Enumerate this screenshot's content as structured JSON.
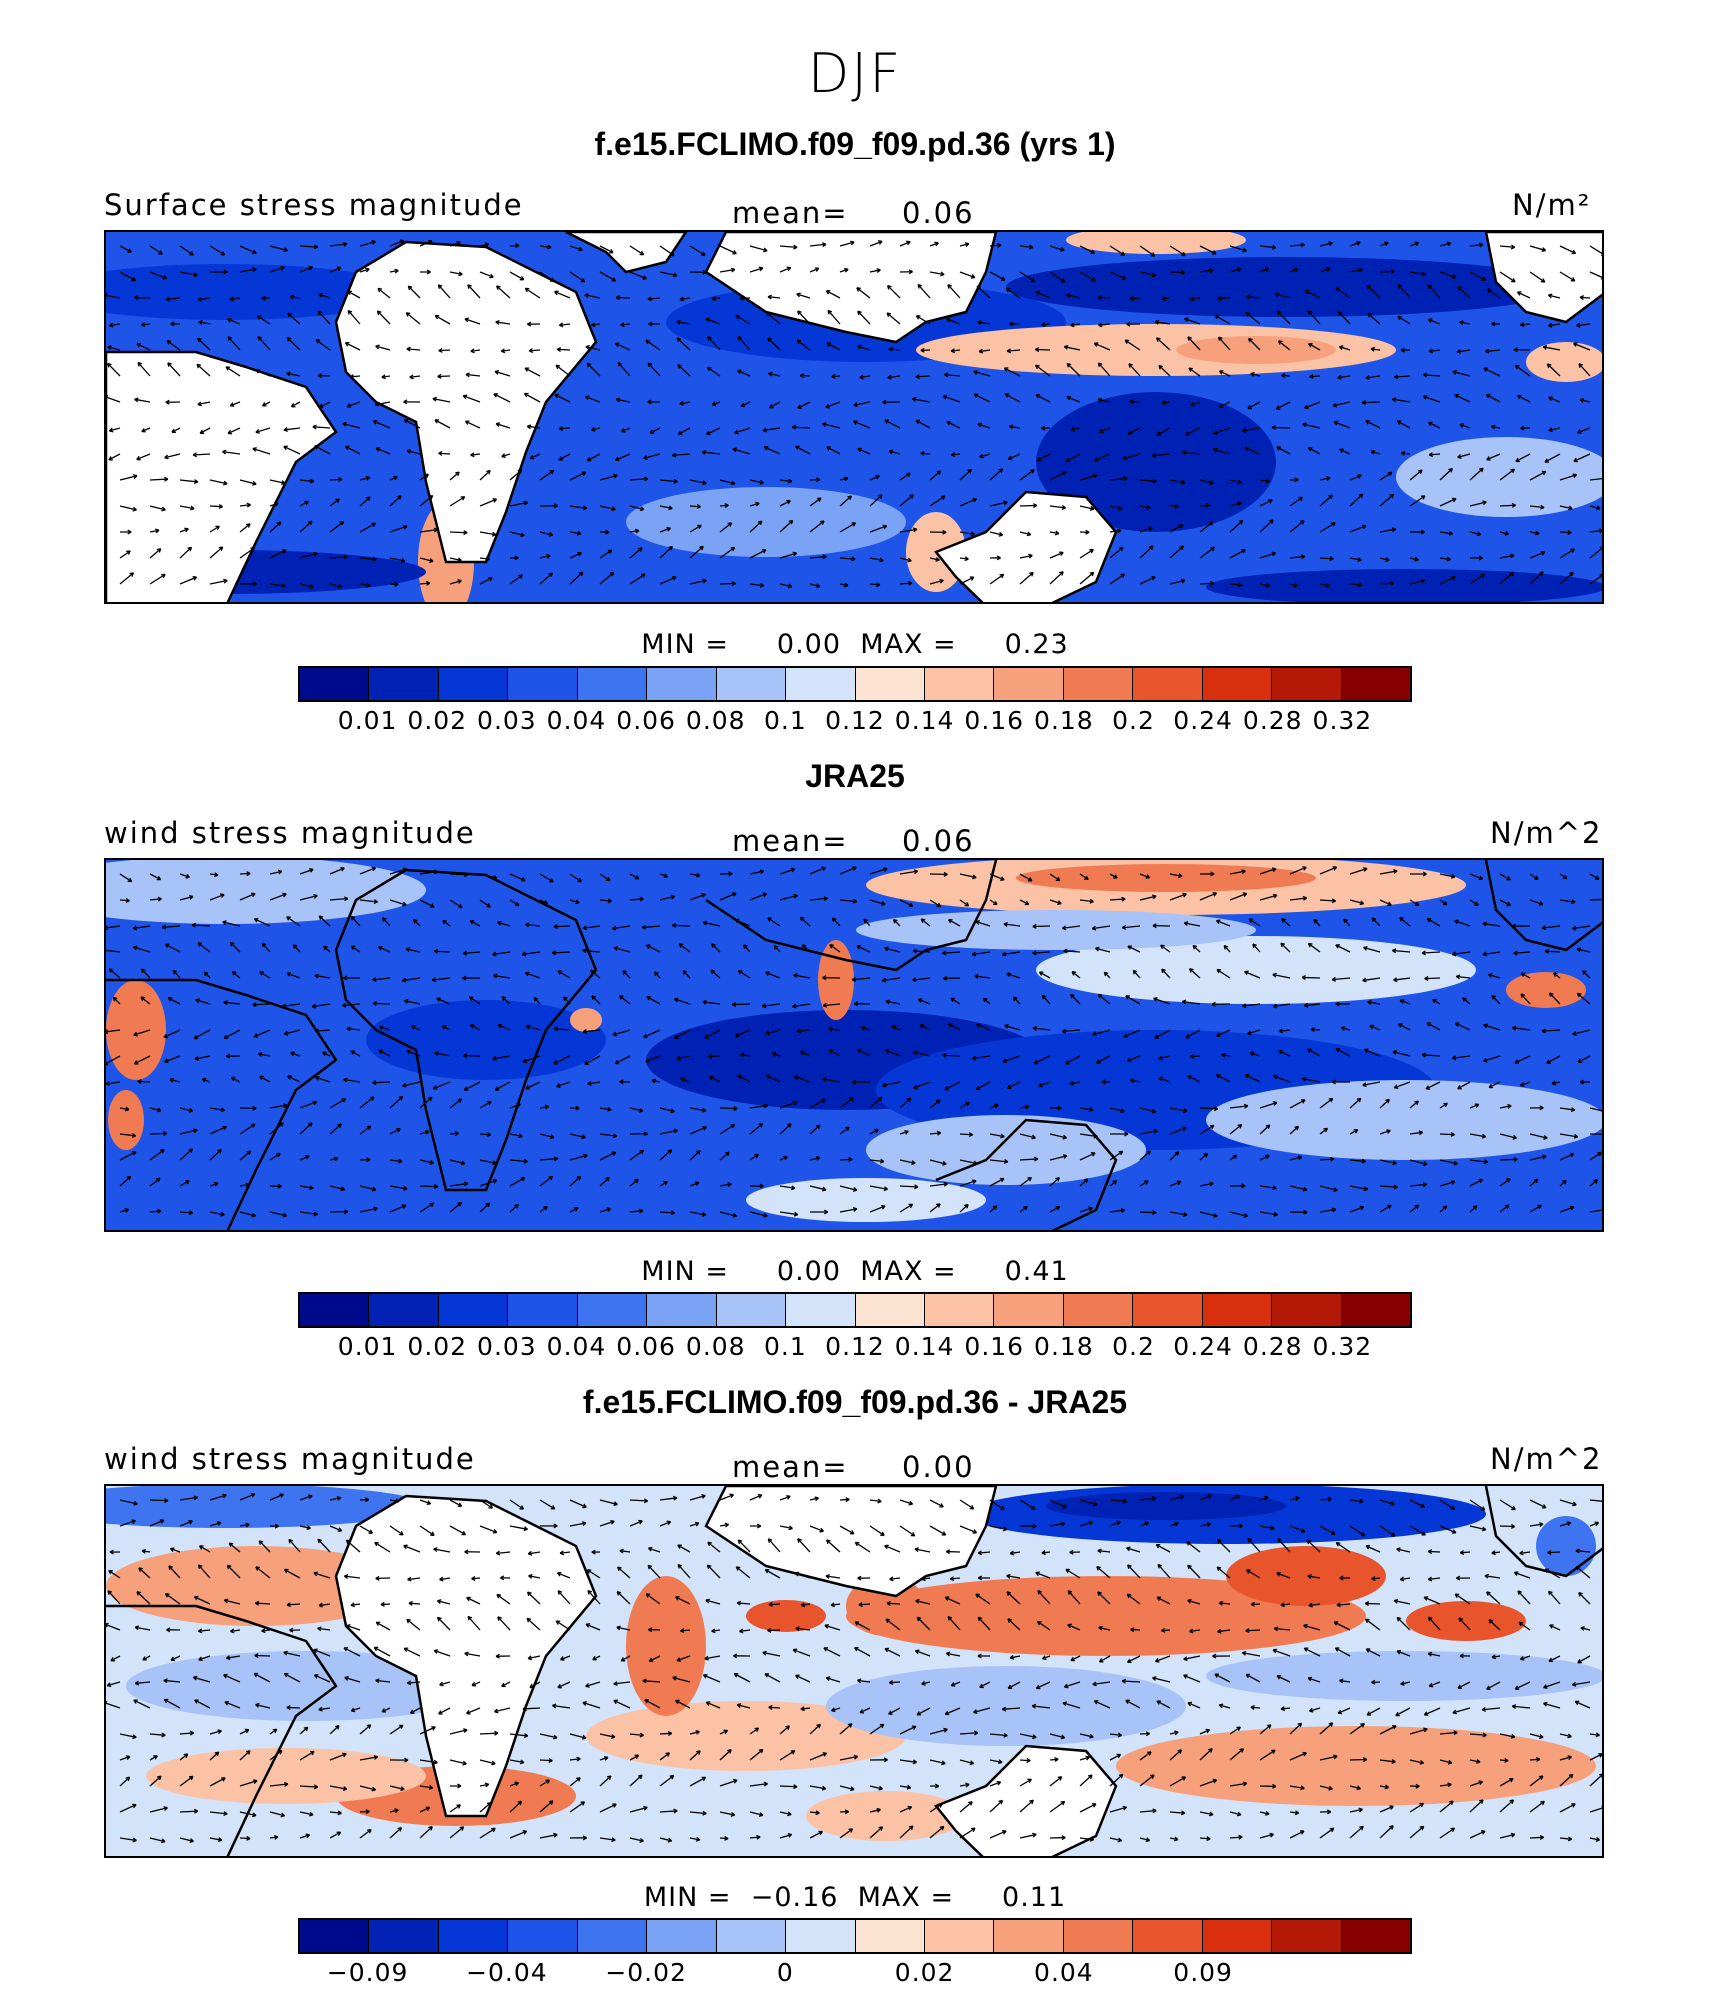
{
  "figure": {
    "season": "DJF"
  },
  "colors": {
    "seq": [
      "#000a8c",
      "#0022b4",
      "#0537d6",
      "#1e55e8",
      "#3f74f0",
      "#7aa2f5",
      "#a7c3f8",
      "#d2e3fa",
      "#fde4d2",
      "#fbc2a6",
      "#f7a07c",
      "#f07b52",
      "#e8542c",
      "#d8300e",
      "#b41908",
      "#860000"
    ],
    "land": "#ffffff",
    "coast": "#000000",
    "arrow": "#000000"
  },
  "panels": [
    {
      "title": "f.e15.FCLIMO.f09_f09.pd.36 (yrs 1)",
      "left_label": "Surface stress magnitude",
      "mean_label": "mean=",
      "mean_value": "0.06",
      "units": "N/m²",
      "min_label": "MIN =",
      "min_value": "0.00",
      "max_label": "MAX =",
      "max_value": "0.23",
      "colorbar_labels": [
        "0.01",
        "0.02",
        "0.03",
        "0.04",
        "0.06",
        "0.08",
        "0.1",
        "0.12",
        "0.14",
        "0.16",
        "0.18",
        "0.2",
        "0.24",
        "0.28",
        "0.32"
      ]
    },
    {
      "title": "JRA25",
      "left_label": "wind stress magnitude",
      "mean_label": "mean=",
      "mean_value": "0.06",
      "units": "N/m^2",
      "min_label": "MIN =",
      "min_value": "0.00",
      "max_label": "MAX =",
      "max_value": "0.41",
      "colorbar_labels": [
        "0.01",
        "0.02",
        "0.03",
        "0.04",
        "0.06",
        "0.08",
        "0.1",
        "0.12",
        "0.14",
        "0.16",
        "0.18",
        "0.2",
        "0.24",
        "0.28",
        "0.32"
      ]
    },
    {
      "title": "f.e15.FCLIMO.f09_f09.pd.36 - JRA25",
      "left_label": "wind stress magnitude",
      "mean_label": "mean=",
      "mean_value": "0.00",
      "units": "N/m^2",
      "min_label": "MIN =",
      "min_value": "−0.16",
      "max_label": "MAX =",
      "max_value": "0.11",
      "colorbar_labels": [
        "−0.09",
        "",
        "−0.04",
        "",
        "−0.02",
        "",
        "0",
        "",
        "0.02",
        "",
        "0.04",
        "",
        "0.09"
      ]
    }
  ]
}
